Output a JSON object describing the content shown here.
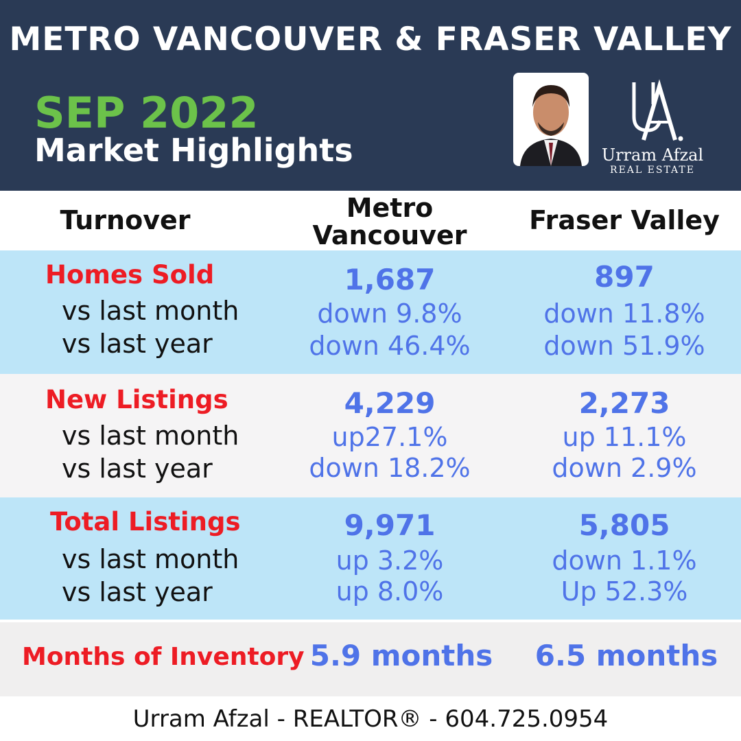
{
  "header": {
    "title": "METRO VANCOUVER & FRASER VALLEY",
    "date": "SEP 2022",
    "subtitle": "Market Highlights",
    "logo": {
      "mark": "UA.",
      "name": "Urram Afzal",
      "tagline": "REAL ESTATE"
    }
  },
  "columns": {
    "label": "Turnover",
    "metro": "Metro Vancouver",
    "fraser": "Fraser Valley"
  },
  "rows": [
    {
      "label": "Homes Sold",
      "sub1": "vs last month",
      "sub2": "vs last year",
      "metro": {
        "value": "1,687",
        "month": "down 9.8%",
        "year": "down 46.4%"
      },
      "fraser": {
        "value": "897",
        "month": "down 11.8%",
        "year": "down 51.9%"
      }
    },
    {
      "label": "New Listings",
      "sub1": "vs last month",
      "sub2": "vs last year",
      "metro": {
        "value": "4,229",
        "month": "up27.1%",
        "year": "down 18.2%"
      },
      "fraser": {
        "value": "2,273",
        "month": "up 11.1%",
        "year": "down 2.9%"
      }
    },
    {
      "label": "Total Listings",
      "sub1": "vs last month",
      "sub2": "vs last year",
      "metro": {
        "value": "9,971",
        "month": "up 3.2%",
        "year": "up 8.0%"
      },
      "fraser": {
        "value": "5,805",
        "month": "down 1.1%",
        "year": "Up 52.3%"
      }
    }
  ],
  "inventory": {
    "label": "Months of Inventory",
    "metro": "5.9 months",
    "fraser": "6.5 months"
  },
  "footer": "Urram Afzal - REALTOR® - 604.725.0954",
  "colors": {
    "header_bg": "#2a3a55",
    "accent_green": "#6cc24a",
    "label_red": "#ed1c24",
    "value_blue": "#4f73e8",
    "band_blue": "#bde5f8",
    "band_grey": "#f5f4f5"
  }
}
